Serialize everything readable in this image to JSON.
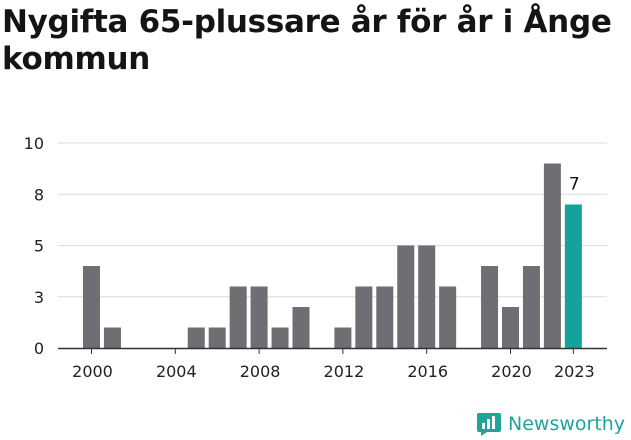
{
  "chart_data": {
    "type": "bar",
    "title": "Nygifta 65-plussare år för år i Ånge kommun",
    "xlabel": "",
    "ylabel": "",
    "ylim": [
      0,
      10
    ],
    "yticks": [
      {
        "value": 0,
        "label": "0"
      },
      {
        "value": 2.5,
        "label": "3"
      },
      {
        "value": 5,
        "label": "5"
      },
      {
        "value": 7.5,
        "label": "8"
      },
      {
        "value": 10,
        "label": "10"
      }
    ],
    "xticks": [
      "2000",
      "2004",
      "2008",
      "2012",
      "2016",
      "2020",
      "2023"
    ],
    "categories": [
      "2000",
      "2001",
      "2002",
      "2003",
      "2004",
      "2005",
      "2006",
      "2007",
      "2008",
      "2009",
      "2010",
      "2011",
      "2012",
      "2013",
      "2014",
      "2015",
      "2016",
      "2017",
      "2018",
      "2019",
      "2020",
      "2021",
      "2022",
      "2023"
    ],
    "values": [
      4,
      1,
      0,
      0,
      0,
      1,
      1,
      3,
      3,
      1,
      2,
      0,
      1,
      3,
      3,
      5,
      5,
      3,
      0,
      4,
      2,
      4,
      9,
      7
    ],
    "highlight": {
      "category": "2023",
      "label": "7"
    },
    "grid": true,
    "legend": "none",
    "colors": {
      "bar": "#6e6e73",
      "highlight": "#14a39a",
      "grid": "#dcdcdc",
      "axis": "#333333"
    }
  },
  "branding": {
    "name": "Newsworthy",
    "icon": "newsworthy-logo-icon"
  }
}
